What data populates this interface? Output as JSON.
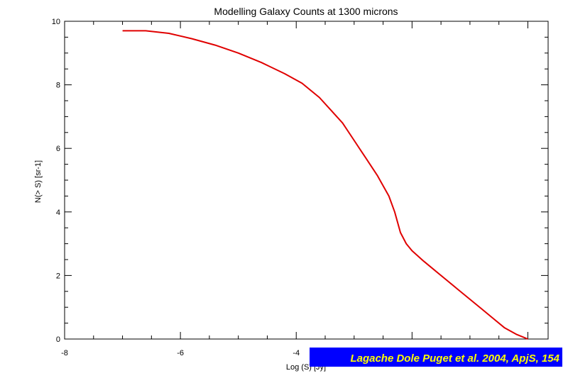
{
  "chart_data": {
    "type": "line",
    "title": "Modelling Galaxy Counts at 1300 microns",
    "xlabel": "Log (S) [Jy]",
    "ylabel": "N(> S) [sr-1]",
    "xlim": [
      -8,
      0.35
    ],
    "ylim": [
      0,
      10
    ],
    "xticks": [
      "-8",
      "-6",
      "-4"
    ],
    "yticks": [
      "0",
      "2",
      "4",
      "6",
      "8",
      "10"
    ],
    "grid": false,
    "series": [
      {
        "color": "#e00000",
        "x": [
          -7.0,
          -6.6,
          -6.2,
          -5.8,
          -5.4,
          -5.0,
          -4.6,
          -4.2,
          -3.9,
          -3.6,
          -3.4,
          -3.2,
          -3.0,
          -2.8,
          -2.6,
          -2.4,
          -2.3,
          -2.2,
          -2.1,
          -2.0,
          -1.8,
          -1.6,
          -1.4,
          -1.2,
          -1.0,
          -0.8,
          -0.6,
          -0.4,
          -0.2,
          0.0
        ],
        "y": [
          9.7,
          9.7,
          9.62,
          9.45,
          9.25,
          9.0,
          8.7,
          8.35,
          8.05,
          7.6,
          7.2,
          6.8,
          6.25,
          5.7,
          5.15,
          4.5,
          4.0,
          3.35,
          3.0,
          2.78,
          2.45,
          2.15,
          1.85,
          1.55,
          1.25,
          0.95,
          0.65,
          0.35,
          0.15,
          0.0
        ]
      }
    ]
  },
  "credit": {
    "text": "Lagache Dole Puget et al. 2004, ApjS, 154",
    "background": "#0000ff",
    "color": "#ffff00"
  }
}
